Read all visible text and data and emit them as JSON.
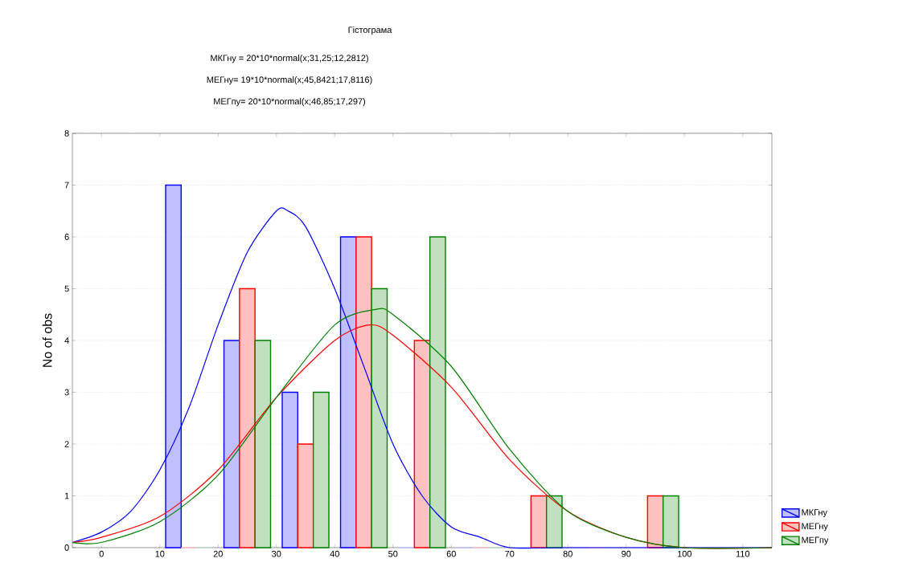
{
  "chart_data": {
    "type": "histogram",
    "title": "Гістограма",
    "annotations": [
      "МКГну = 20*10*normal(x;31,25;12,2812)",
      "МЕГну= 19*10*normal(x;45,8421;17,8116)",
      "МЕГпу= 20*10*normal(x;46,85;17,297)"
    ],
    "ylabel": "No of obs",
    "bins": [
      10,
      20,
      30,
      40,
      50,
      60,
      70,
      80,
      90,
      100
    ],
    "series": [
      {
        "name": "МКГну",
        "color": "#c0c0ff",
        "values": [
          7,
          4,
          3,
          6,
          0,
          0,
          0,
          0,
          0
        ]
      },
      {
        "name": "МЕГну",
        "color": "#ffc0c0",
        "values": [
          0,
          5,
          2,
          6,
          4,
          0,
          1,
          0,
          1
        ]
      },
      {
        "name": "МЕГпу",
        "color": "#c0e0c0",
        "values": [
          0,
          4,
          3,
          5,
          6,
          0,
          1,
          0,
          1
        ]
      },
      {
        "type": "line",
        "color": "#0000ff",
        "x": [
          -5,
          0,
          5,
          10,
          15,
          20,
          25,
          30,
          32,
          35,
          40,
          45,
          50,
          55,
          60,
          65,
          70,
          80,
          115
        ],
        "values": [
          0.1,
          0.3,
          0.7,
          1.5,
          2.7,
          4.3,
          5.7,
          6.5,
          6.5,
          6.2,
          5.0,
          3.5,
          2.0,
          1.0,
          0.4,
          0.2,
          0.0,
          0.0,
          0.0
        ]
      },
      {
        "type": "line",
        "color": "#ff0000",
        "x": [
          -5,
          0,
          10,
          20,
          30,
          40,
          46,
          50,
          60,
          70,
          80,
          90,
          100,
          115
        ],
        "values": [
          0.1,
          0.2,
          0.6,
          1.5,
          2.9,
          4.0,
          4.3,
          4.1,
          3.1,
          1.7,
          0.7,
          0.2,
          0.0,
          0.0
        ]
      },
      {
        "type": "line",
        "color": "#008000",
        "x": [
          -5,
          0,
          10,
          20,
          30,
          40,
          47,
          50,
          60,
          70,
          80,
          90,
          100,
          115
        ],
        "values": [
          0.1,
          0.1,
          0.5,
          1.4,
          2.9,
          4.3,
          4.6,
          4.5,
          3.5,
          1.9,
          0.7,
          0.2,
          0.0,
          0.0
        ]
      }
    ],
    "xlim": [
      -5,
      115
    ],
    "ylim": [
      0,
      8
    ],
    "xticks": [
      0,
      10,
      20,
      30,
      40,
      50,
      60,
      70,
      80,
      90,
      100,
      110
    ],
    "yticks": [
      0,
      1,
      2,
      3,
      4,
      5,
      6,
      7,
      8
    ],
    "grid": "y",
    "legend": "bottom right"
  }
}
